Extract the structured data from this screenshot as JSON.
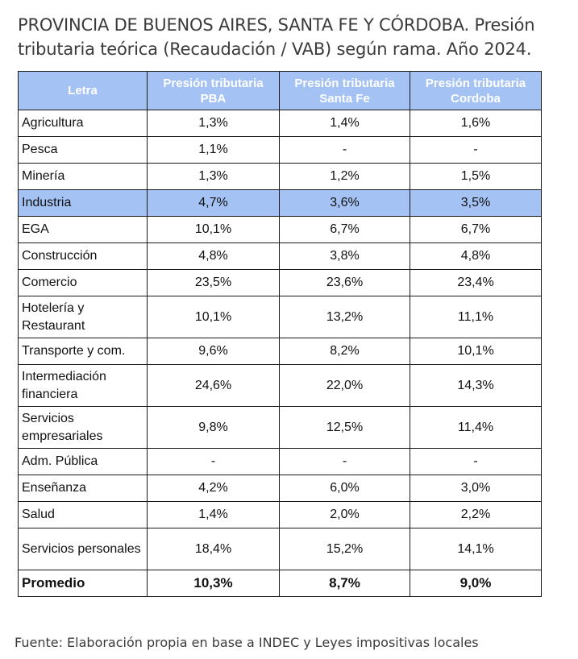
{
  "title": "PROVINCIA DE BUENOS AIRES, SANTA FE Y CÓRDOBA. Presión tributaria teórica (Recaudación / VAB) según rama. Año 2024.",
  "table": {
    "headers": [
      "Letra",
      "Presión tributaria PBA",
      "Presión tributaria Santa Fe",
      "Presión tributaria Cordoba"
    ],
    "rows": [
      {
        "label": "Agricultura",
        "pba": "1,3%",
        "santa_fe": "1,4%",
        "cordoba": "1,6%"
      },
      {
        "label": "Pesca",
        "pba": "1,1%",
        "santa_fe": "-",
        "cordoba": "-"
      },
      {
        "label": "Minería",
        "pba": "1,3%",
        "santa_fe": "1,2%",
        "cordoba": "1,5%"
      },
      {
        "label": "Industria",
        "pba": "4,7%",
        "santa_fe": "3,6%",
        "cordoba": "3,5%",
        "highlighted": true
      },
      {
        "label": "EGA",
        "pba": "10,1%",
        "santa_fe": "6,7%",
        "cordoba": "6,7%"
      },
      {
        "label": "Construcción",
        "pba": "4,8%",
        "santa_fe": "3,8%",
        "cordoba": "4,8%"
      },
      {
        "label": "Comercio",
        "pba": "23,5%",
        "santa_fe": "23,6%",
        "cordoba": "23,4%"
      },
      {
        "label": "Hotelería y Restaurant",
        "pba": "10,1%",
        "santa_fe": "13,2%",
        "cordoba": "11,1%"
      },
      {
        "label": "Transporte y com.",
        "pba": "9,6%",
        "santa_fe": "8,2%",
        "cordoba": "10,1%"
      },
      {
        "label": "Intermediación financiera",
        "pba": "24,6%",
        "santa_fe": "22,0%",
        "cordoba": "14,3%"
      },
      {
        "label": "Servicios empresariales",
        "pba": "9,8%",
        "santa_fe": "12,5%",
        "cordoba": "11,4%"
      },
      {
        "label": "Adm. Pública",
        "pba": "-",
        "santa_fe": "-",
        "cordoba": "-"
      },
      {
        "label": "Enseñanza",
        "pba": "4,2%",
        "santa_fe": "6,0%",
        "cordoba": "3,0%"
      },
      {
        "label": "Salud",
        "pba": "1,4%",
        "santa_fe": "2,0%",
        "cordoba": "2,2%"
      },
      {
        "label": "Servicios personales",
        "pba": "18,4%",
        "santa_fe": "15,2%",
        "cordoba": "14,1%"
      }
    ],
    "average": {
      "label": "Promedio",
      "pba": "10,3%",
      "santa_fe": "8,7%",
      "cordoba": "9,0%"
    }
  },
  "footnote": "Fuente: Elaboración propia en base a INDEC y Leyes impositivas locales",
  "colors": {
    "header_bg": "#a4c2f4",
    "highlight_bg": "#a4c2f4",
    "header_text": "#ffffff"
  }
}
